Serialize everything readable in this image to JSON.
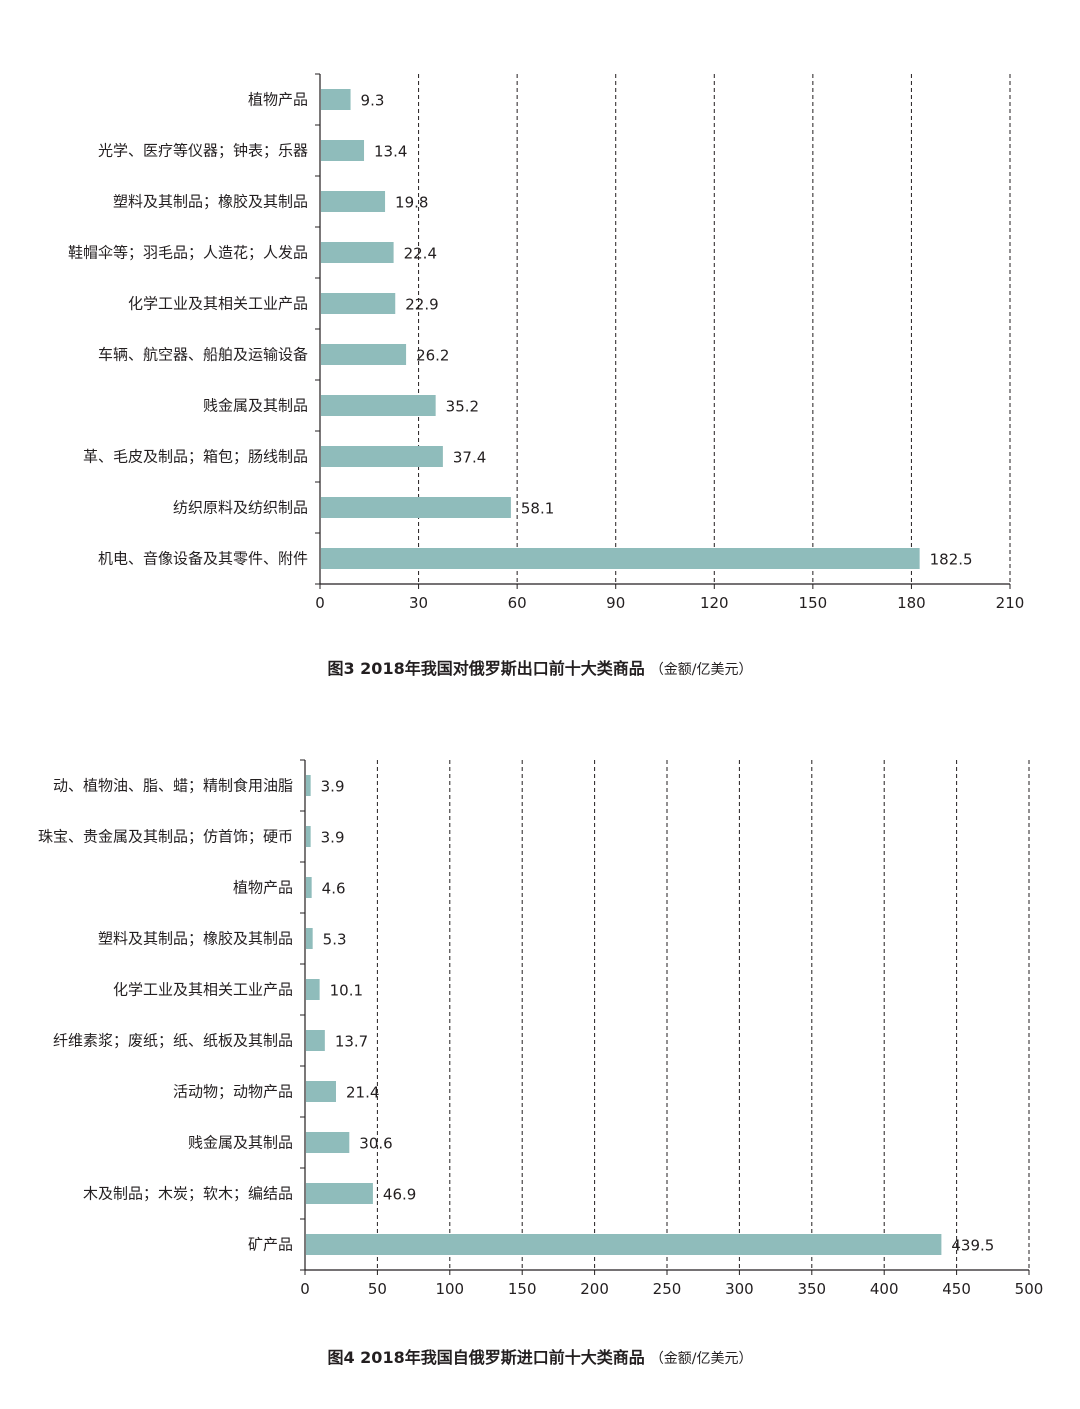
{
  "colors": {
    "bar": "#8fbcbb",
    "axis": "#231f20",
    "grid": "#231f20"
  },
  "chart_data": [
    {
      "type": "bar",
      "orientation": "horizontal",
      "title": "图3  2018年我国对俄罗斯出口前十大类商品",
      "unit": "（金额/亿美元）",
      "categories": [
        "植物产品",
        "光学、医疗等仪器；钟表；乐器",
        "塑料及其制品；橡胶及其制品",
        "鞋帽伞等；羽毛品；人造花；人发品",
        "化学工业及其相关工业产品",
        "车辆、航空器、船舶及运输设备",
        "贱金属及其制品",
        "革、毛皮及制品；箱包；肠线制品",
        "纺织原料及纺织制品",
        "机电、音像设备及其零件、附件"
      ],
      "values": [
        9.3,
        13.4,
        19.8,
        22.4,
        22.9,
        26.2,
        35.2,
        37.4,
        58.1,
        182.5
      ],
      "value_labels": [
        "9.3",
        "13.4",
        "19.8",
        "22.4",
        "22.9",
        "26.2",
        "35.2",
        "37.4",
        "58.1",
        "182.5"
      ],
      "xlim": [
        0,
        210
      ],
      "xticks": [
        0,
        30,
        60,
        90,
        120,
        150,
        180,
        210
      ],
      "grid": true
    },
    {
      "type": "bar",
      "orientation": "horizontal",
      "title": "图4  2018年我国自俄罗斯进口前十大类商品",
      "unit": "（金额/亿美元）",
      "categories": [
        "动、植物油、脂、蜡；精制食用油脂",
        "珠宝、贵金属及其制品；仿首饰；硬币",
        "植物产品",
        "塑料及其制品；橡胶及其制品",
        "化学工业及其相关工业产品",
        "纤维素浆；废纸；纸、纸板及其制品",
        "活动物；动物产品",
        "贱金属及其制品",
        "木及制品；木炭；软木；编结品",
        "矿产品"
      ],
      "values": [
        3.9,
        3.9,
        4.6,
        5.3,
        10.1,
        13.7,
        21.4,
        30.6,
        46.9,
        439.5
      ],
      "value_labels": [
        "3.9",
        "3.9",
        "4.6",
        "5.3",
        "10.1",
        "13.7",
        "21.4",
        "30.6",
        "46.9",
        "439.5"
      ],
      "xlim": [
        0,
        500
      ],
      "xticks": [
        0,
        50,
        100,
        150,
        200,
        250,
        300,
        350,
        400,
        450,
        500
      ],
      "grid": true
    }
  ]
}
